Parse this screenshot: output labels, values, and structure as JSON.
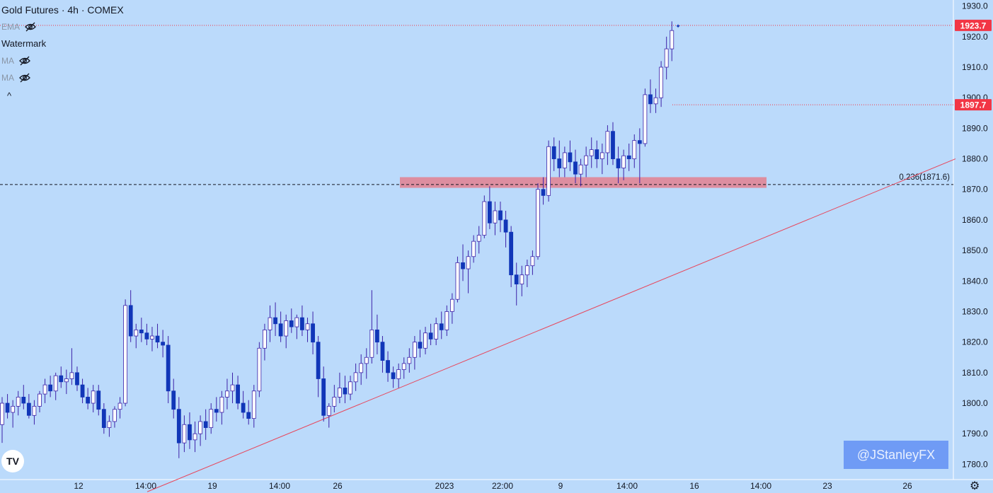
{
  "header": {
    "title": "Gold Futures · 4h · COMEX",
    "indicators": [
      {
        "label": "EMA",
        "faint": true
      },
      {
        "label": "Watermark",
        "faint": false
      },
      {
        "label": "MA",
        "faint": true
      },
      {
        "label": "MA",
        "faint": true
      }
    ],
    "collapse_glyph": "^"
  },
  "watermark": "@JStanleyFX",
  "tv_logo": "TV",
  "settings_glyph": "⚙",
  "colors": {
    "background": "#bbdafb",
    "bull_fill": "#ffffff",
    "bear_fill": "#1136b8",
    "wick": "#3d22a8",
    "trendline": "#e8455a",
    "zone": "#de8a9b",
    "price_tag": "#f23645"
  },
  "chart_data": {
    "type": "candlestick",
    "ylim": [
      1775,
      1932
    ],
    "y_ticks": [
      1780.0,
      1790.0,
      1800.0,
      1810.0,
      1820.0,
      1830.0,
      1840.0,
      1850.0,
      1860.0,
      1870.0,
      1880.0,
      1890.0,
      1900.0,
      1910.0,
      1920.0,
      1930.0
    ],
    "x_ticks": [
      "12",
      "14:00",
      "19",
      "14:00",
      "26",
      "2023",
      "22:00",
      "9",
      "14:00",
      "16",
      "14:00",
      "23",
      "26"
    ],
    "price_labels": [
      {
        "text": "1923.7",
        "value": 1923.7,
        "line_style": "dotted"
      },
      {
        "text": "1897.7",
        "value": 1897.7,
        "line_style": "dotted"
      }
    ],
    "fib_level": {
      "label": "0.236(1871.6)",
      "value": 1871.6
    },
    "resistance_zone": {
      "from": 1870.5,
      "to": 1874.0
    },
    "trendline": [
      {
        "bar": 0,
        "price": 1771.0
      },
      {
        "bar": 222,
        "price": 1880.0
      }
    ],
    "candles": [
      [
        1793,
        1802,
        1787,
        1800
      ],
      [
        1800,
        1803,
        1795,
        1797
      ],
      [
        1797,
        1801,
        1792,
        1799
      ],
      [
        1799,
        1804,
        1796,
        1802
      ],
      [
        1802,
        1806,
        1798,
        1800
      ],
      [
        1800,
        1803,
        1795,
        1796
      ],
      [
        1796,
        1801,
        1793,
        1799
      ],
      [
        1799,
        1804,
        1797,
        1803
      ],
      [
        1803,
        1808,
        1800,
        1806
      ],
      [
        1806,
        1809,
        1802,
        1804
      ],
      [
        1804,
        1810,
        1801,
        1809
      ],
      [
        1809,
        1812,
        1805,
        1807
      ],
      [
        1807,
        1811,
        1803,
        1808
      ],
      [
        1808,
        1818,
        1806,
        1810
      ],
      [
        1810,
        1812,
        1804,
        1806
      ],
      [
        1806,
        1808,
        1800,
        1802
      ],
      [
        1802,
        1805,
        1798,
        1800
      ],
      [
        1800,
        1806,
        1797,
        1804
      ],
      [
        1804,
        1806,
        1796,
        1798
      ],
      [
        1798,
        1800,
        1790,
        1792
      ],
      [
        1792,
        1796,
        1789,
        1794
      ],
      [
        1794,
        1799,
        1792,
        1798
      ],
      [
        1798,
        1802,
        1795,
        1800
      ],
      [
        1800,
        1834,
        1799,
        1832
      ],
      [
        1832,
        1837,
        1820,
        1822
      ],
      [
        1822,
        1826,
        1818,
        1824
      ],
      [
        1824,
        1828,
        1820,
        1823
      ],
      [
        1823,
        1826,
        1819,
        1821
      ],
      [
        1821,
        1825,
        1817,
        1822
      ],
      [
        1822,
        1826,
        1818,
        1820
      ],
      [
        1820,
        1824,
        1815,
        1819
      ],
      [
        1819,
        1822,
        1800,
        1804
      ],
      [
        1804,
        1808,
        1795,
        1798
      ],
      [
        1798,
        1802,
        1782,
        1787
      ],
      [
        1787,
        1796,
        1784,
        1793
      ],
      [
        1793,
        1797,
        1785,
        1788
      ],
      [
        1788,
        1794,
        1784,
        1790
      ],
      [
        1790,
        1796,
        1786,
        1794
      ],
      [
        1794,
        1798,
        1788,
        1792
      ],
      [
        1792,
        1800,
        1790,
        1798
      ],
      [
        1798,
        1802,
        1794,
        1797
      ],
      [
        1797,
        1804,
        1793,
        1802
      ],
      [
        1802,
        1808,
        1798,
        1804
      ],
      [
        1804,
        1810,
        1800,
        1806
      ],
      [
        1806,
        1809,
        1798,
        1800
      ],
      [
        1800,
        1804,
        1795,
        1797
      ],
      [
        1797,
        1801,
        1793,
        1795
      ],
      [
        1795,
        1806,
        1792,
        1804
      ],
      [
        1804,
        1820,
        1802,
        1818
      ],
      [
        1818,
        1826,
        1814,
        1824
      ],
      [
        1824,
        1832,
        1820,
        1828
      ],
      [
        1828,
        1833,
        1822,
        1826
      ],
      [
        1826,
        1830,
        1820,
        1822
      ],
      [
        1822,
        1829,
        1818,
        1827
      ],
      [
        1827,
        1831,
        1823,
        1825
      ],
      [
        1825,
        1829,
        1821,
        1828
      ],
      [
        1828,
        1832,
        1822,
        1824
      ],
      [
        1824,
        1828,
        1820,
        1826
      ],
      [
        1826,
        1830,
        1816,
        1820
      ],
      [
        1820,
        1822,
        1802,
        1808
      ],
      [
        1808,
        1812,
        1794,
        1796
      ],
      [
        1796,
        1800,
        1792,
        1799
      ],
      [
        1799,
        1806,
        1797,
        1802
      ],
      [
        1802,
        1810,
        1800,
        1805
      ],
      [
        1805,
        1809,
        1800,
        1803
      ],
      [
        1803,
        1809,
        1801,
        1807
      ],
      [
        1807,
        1813,
        1804,
        1810
      ],
      [
        1810,
        1816,
        1806,
        1813
      ],
      [
        1813,
        1818,
        1808,
        1815
      ],
      [
        1815,
        1837,
        1813,
        1824
      ],
      [
        1824,
        1829,
        1816,
        1820
      ],
      [
        1820,
        1822,
        1810,
        1814
      ],
      [
        1814,
        1817,
        1807,
        1810
      ],
      [
        1810,
        1812,
        1805,
        1808
      ],
      [
        1808,
        1813,
        1805,
        1811
      ],
      [
        1811,
        1815,
        1808,
        1813
      ],
      [
        1813,
        1818,
        1810,
        1815
      ],
      [
        1815,
        1822,
        1811,
        1820
      ],
      [
        1820,
        1824,
        1815,
        1818
      ],
      [
        1818,
        1825,
        1816,
        1823
      ],
      [
        1823,
        1826,
        1819,
        1821
      ],
      [
        1821,
        1828,
        1819,
        1826
      ],
      [
        1826,
        1830,
        1821,
        1824
      ],
      [
        1824,
        1832,
        1822,
        1830
      ],
      [
        1830,
        1836,
        1826,
        1834
      ],
      [
        1834,
        1848,
        1833,
        1846
      ],
      [
        1846,
        1852,
        1840,
        1844
      ],
      [
        1844,
        1850,
        1836,
        1848
      ],
      [
        1848,
        1855,
        1846,
        1853
      ],
      [
        1853,
        1858,
        1849,
        1855
      ],
      [
        1855,
        1868,
        1854,
        1866
      ],
      [
        1866,
        1871,
        1857,
        1859
      ],
      [
        1859,
        1866,
        1855,
        1863
      ],
      [
        1863,
        1866,
        1856,
        1860
      ],
      [
        1860,
        1863,
        1851,
        1856
      ],
      [
        1856,
        1858,
        1838,
        1842
      ],
      [
        1842,
        1846,
        1832,
        1839
      ],
      [
        1839,
        1845,
        1835,
        1842
      ],
      [
        1842,
        1847,
        1838,
        1845
      ],
      [
        1845,
        1850,
        1842,
        1848
      ],
      [
        1848,
        1872,
        1847,
        1870
      ],
      [
        1870,
        1874,
        1865,
        1868
      ],
      [
        1868,
        1886,
        1866,
        1884
      ],
      [
        1884,
        1887,
        1876,
        1880
      ],
      [
        1880,
        1886,
        1874,
        1877
      ],
      [
        1877,
        1884,
        1874,
        1882
      ],
      [
        1882,
        1886,
        1876,
        1879
      ],
      [
        1879,
        1883,
        1872,
        1875
      ],
      [
        1875,
        1880,
        1871,
        1878
      ],
      [
        1878,
        1884,
        1874,
        1881
      ],
      [
        1881,
        1887,
        1877,
        1883
      ],
      [
        1883,
        1886,
        1877,
        1880
      ],
      [
        1880,
        1885,
        1875,
        1882
      ],
      [
        1882,
        1891,
        1878,
        1889
      ],
      [
        1889,
        1892,
        1878,
        1880
      ],
      [
        1880,
        1884,
        1872,
        1877
      ],
      [
        1877,
        1883,
        1873,
        1881
      ],
      [
        1881,
        1885,
        1876,
        1880
      ],
      [
        1880,
        1888,
        1877,
        1886
      ],
      [
        1886,
        1890,
        1872,
        1885
      ],
      [
        1885,
        1903,
        1884,
        1901
      ],
      [
        1901,
        1906,
        1895,
        1898
      ],
      [
        1898,
        1903,
        1895,
        1900
      ],
      [
        1900,
        1912,
        1897,
        1910
      ],
      [
        1910,
        1920,
        1906,
        1916
      ],
      [
        1916,
        1925,
        1912,
        1922
      ]
    ]
  }
}
